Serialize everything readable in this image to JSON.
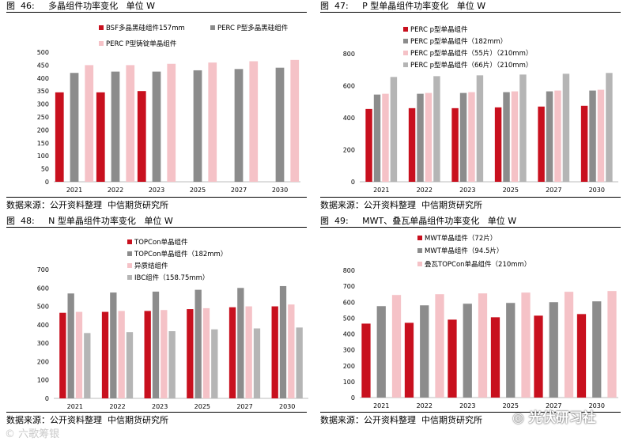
{
  "source_text": "数据来源：公开资料整理  中信期货研究所",
  "watermark_left": "六歌筹银",
  "watermark_right": "光伏研习社",
  "colors": {
    "red": "#c8101e",
    "gray": "#8c8c8c",
    "pink": "#f5c2c7",
    "lightgray": "#b5b5b5"
  },
  "charts": [
    {
      "title": "图  46:     多晶组件功率变化   单位 W",
      "chart_data": {
        "type": "bar",
        "categories": [
          "2021",
          "2022",
          "2023",
          "2025",
          "2027",
          "2030"
        ],
        "yticks": [
          "0",
          "50",
          "100",
          "150",
          "200",
          "250",
          "300",
          "350",
          "400",
          "450",
          "500"
        ],
        "ylim": [
          0,
          500
        ],
        "series": [
          {
            "name": "BSF多晶黑硅组件157mm",
            "color": "#c8101e",
            "values": [
              345,
              345,
              350,
              null,
              null,
              null
            ]
          },
          {
            "name": "PERC P型多晶黑硅组件",
            "color": "#8c8c8c",
            "values": [
              420,
              425,
              425,
              430,
              435,
              440
            ]
          },
          {
            "name": "PERC P型铸锭单晶组件",
            "color": "#f5c2c7",
            "values": [
              450,
              450,
              455,
              460,
              465,
              470
            ]
          }
        ]
      }
    },
    {
      "title": "图  47:     P 型单晶组件功率变化   单位 W",
      "chart_data": {
        "type": "bar",
        "categories": [
          "2021",
          "2022",
          "2023",
          "2025",
          "2027",
          "2030"
        ],
        "yticks": [
          "0",
          "200",
          "400",
          "600",
          "800"
        ],
        "ylim": [
          0,
          800
        ],
        "series": [
          {
            "name": "PERC p型单晶组件",
            "color": "#c8101e",
            "values": [
              455,
              460,
              460,
              465,
              470,
              475
            ]
          },
          {
            "name": "PERC p型单晶组件（182mm）",
            "color": "#8c8c8c",
            "values": [
              545,
              550,
              555,
              560,
              565,
              570
            ]
          },
          {
            "name": "PERC p型单晶组件（55片）（210mm）",
            "color": "#f5c2c7",
            "values": [
              550,
              555,
              560,
              565,
              570,
              575
            ]
          },
          {
            "name": "PERC p型单晶组件（66片）（210mm）",
            "color": "#b5b5b5",
            "values": [
              655,
              660,
              665,
              670,
              675,
              680
            ]
          }
        ]
      }
    },
    {
      "title": "图  48:     N 型单晶组件功率变化   单位 W",
      "chart_data": {
        "type": "bar",
        "categories": [
          "2021",
          "2022",
          "2023",
          "2025",
          "2027",
          "2030"
        ],
        "yticks": [
          "0",
          "100",
          "200",
          "300",
          "400",
          "500",
          "600",
          "700"
        ],
        "ylim": [
          0,
          700
        ],
        "series": [
          {
            "name": "TOPCon单晶组件",
            "color": "#c8101e",
            "values": [
              465,
              470,
              475,
              485,
              495,
              500
            ]
          },
          {
            "name": "TOPCon单晶组件（182mm）",
            "color": "#8c8c8c",
            "values": [
              570,
              575,
              580,
              590,
              600,
              610
            ]
          },
          {
            "name": "异质结组件",
            "color": "#f5c2c7",
            "values": [
              470,
              475,
              480,
              490,
              500,
              510
            ]
          },
          {
            "name": "IBC组件（158.75mm）",
            "color": "#b5b5b5",
            "values": [
              355,
              360,
              365,
              375,
              380,
              385
            ]
          }
        ]
      }
    },
    {
      "title": "图  49:     MWT、叠瓦单晶组件功率变化   单位 W",
      "chart_data": {
        "type": "bar",
        "categories": [
          "2021",
          "2022",
          "2023",
          "2025",
          "2027",
          "2030"
        ],
        "yticks": [
          "0",
          "100",
          "200",
          "300",
          "400",
          "500",
          "600",
          "700",
          "800"
        ],
        "ylim": [
          0,
          800
        ],
        "series": [
          {
            "name": "MWT单晶组件（72片）",
            "color": "#c8101e",
            "values": [
              465,
              470,
              490,
              505,
              515,
              525
            ]
          },
          {
            "name": "MWT单晶组件（94.5片）",
            "color": "#8c8c8c",
            "values": [
              575,
              580,
              590,
              595,
              600,
              605
            ]
          },
          {
            "name": "叠瓦TOPCon单晶组件（210mm）",
            "color": "#f5c2c7",
            "values": [
              645,
              650,
              655,
              660,
              665,
              670
            ]
          }
        ]
      }
    }
  ]
}
